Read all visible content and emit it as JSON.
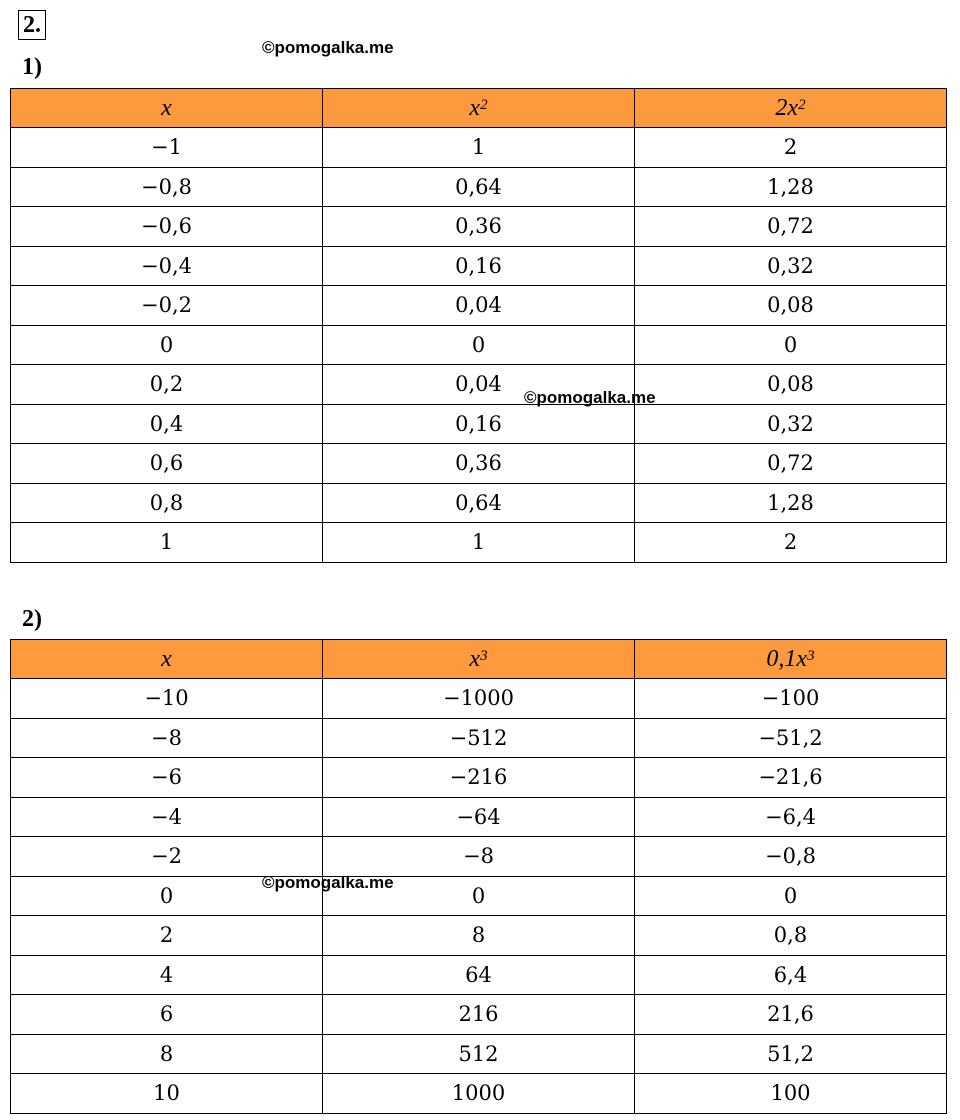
{
  "section_label": "2.",
  "parts": [
    {
      "label": "1)",
      "headers": [
        {
          "text": "x"
        },
        {
          "text": "x",
          "sup": "2"
        },
        {
          "text": "2x",
          "sup": "2"
        }
      ],
      "rows": [
        [
          "−1",
          "1",
          "2"
        ],
        [
          "−0,8",
          "0,64",
          "1,28"
        ],
        [
          "−0,6",
          "0,36",
          "0,72"
        ],
        [
          "−0,4",
          "0,16",
          "0,32"
        ],
        [
          "−0,2",
          "0,04",
          "0,08"
        ],
        [
          "0",
          "0",
          "0"
        ],
        [
          "0,2",
          "0,04",
          "0,08"
        ],
        [
          "0,4",
          "0,16",
          "0,32"
        ],
        [
          "0,6",
          "0,36",
          "0,72"
        ],
        [
          "0,8",
          "0,64",
          "1,28"
        ],
        [
          "1",
          "1",
          "2"
        ]
      ]
    },
    {
      "label": "2)",
      "headers": [
        {
          "text": "x"
        },
        {
          "text": "x",
          "sup": "3"
        },
        {
          "text": "0,1x",
          "sup": "3"
        }
      ],
      "rows": [
        [
          "−10",
          "−1000",
          "−100"
        ],
        [
          "−8",
          "−512",
          "−51,2"
        ],
        [
          "−6",
          "−216",
          "−21,6"
        ],
        [
          "−4",
          "−64",
          "−6,4"
        ],
        [
          "−2",
          "−8",
          "−0,8"
        ],
        [
          "0",
          "0",
          "0"
        ],
        [
          "2",
          "8",
          "0,8"
        ],
        [
          "4",
          "64",
          "6,4"
        ],
        [
          "6",
          "216",
          "21,6"
        ],
        [
          "8",
          "512",
          "51,2"
        ],
        [
          "10",
          "1000",
          "100"
        ]
      ]
    }
  ],
  "watermarks": [
    "©pomogalka.me",
    "©pomogalka.me",
    "©pomogalka.me"
  ]
}
